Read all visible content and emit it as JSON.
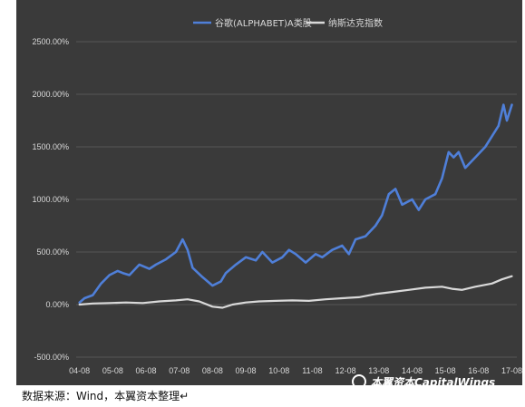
{
  "chart_data": {
    "type": "line",
    "title": "",
    "xlabel": "",
    "ylabel": "",
    "ylim": [
      -500,
      2500
    ],
    "yticks": [
      "2500.00%",
      "2000.00%",
      "1500.00%",
      "1000.00%",
      "500.00%",
      "0.00%",
      "-500.00%"
    ],
    "ytick_values": [
      2500,
      2000,
      1500,
      1000,
      500,
      0,
      -500
    ],
    "x_categories": [
      "04-08",
      "05-08",
      "06-08",
      "07-08",
      "08-08",
      "09-08",
      "10-08",
      "11-08",
      "12-08",
      "13-08",
      "14-08",
      "15-08",
      "16-08",
      "17-08"
    ],
    "legend_position": "top",
    "grid": true,
    "series": [
      {
        "name": "谷歌(ALPHABET)A类股",
        "color": "#4f7fd8",
        "x": [
          2004.6,
          2004.75,
          2005.0,
          2005.25,
          2005.5,
          2005.75,
          2005.9,
          2006.1,
          2006.4,
          2006.7,
          2006.9,
          2007.2,
          2007.5,
          2007.7,
          2007.85,
          2008.0,
          2008.3,
          2008.6,
          2008.85,
          2009.0,
          2009.3,
          2009.6,
          2009.9,
          2010.1,
          2010.4,
          2010.7,
          2010.9,
          2011.1,
          2011.4,
          2011.7,
          2011.9,
          2012.2,
          2012.5,
          2012.7,
          2012.9,
          2013.2,
          2013.5,
          2013.7,
          2013.9,
          2014.1,
          2014.3,
          2014.6,
          2014.8,
          2015.0,
          2015.3,
          2015.5,
          2015.7,
          2015.85,
          2016.0,
          2016.2,
          2016.5,
          2016.8,
          2017.0,
          2017.2,
          2017.35,
          2017.45,
          2017.55,
          2017.6
        ],
        "values": [
          20,
          60,
          90,
          200,
          280,
          320,
          300,
          280,
          380,
          340,
          380,
          430,
          500,
          620,
          520,
          350,
          260,
          180,
          220,
          300,
          380,
          450,
          420,
          500,
          400,
          450,
          520,
          480,
          400,
          480,
          450,
          520,
          560,
          480,
          620,
          650,
          750,
          850,
          1050,
          1100,
          950,
          1000,
          900,
          1000,
          1050,
          1200,
          1450,
          1400,
          1450,
          1300,
          1400,
          1500,
          1600,
          1700,
          1900,
          1750,
          1850,
          1900
        ]
      },
      {
        "name": "纳斯达克指数",
        "color": "#d9d9d9",
        "x": [
          2004.6,
          2005.0,
          2005.5,
          2006.0,
          2006.5,
          2007.0,
          2007.5,
          2007.85,
          2008.2,
          2008.6,
          2008.9,
          2009.2,
          2009.6,
          2010.0,
          2010.5,
          2011.0,
          2011.5,
          2012.0,
          2012.5,
          2013.0,
          2013.5,
          2014.0,
          2014.5,
          2015.0,
          2015.5,
          2015.8,
          2016.1,
          2016.5,
          2017.0,
          2017.3,
          2017.6
        ],
        "values": [
          0,
          10,
          15,
          20,
          15,
          30,
          40,
          50,
          30,
          -20,
          -30,
          0,
          20,
          30,
          35,
          40,
          35,
          50,
          60,
          70,
          100,
          120,
          140,
          160,
          170,
          150,
          140,
          170,
          200,
          240,
          270
        ]
      }
    ]
  },
  "footer": {
    "source_note": "数据来源：Wind，本翼资本整理↵",
    "watermark": "本翼资本CapitalWings"
  }
}
